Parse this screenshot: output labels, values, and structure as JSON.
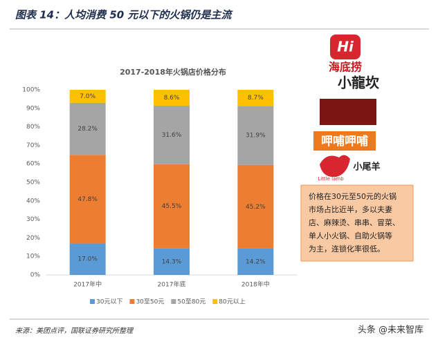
{
  "header": {
    "title": "图表 14：人均消费 50 元以下的火锅仍是主流"
  },
  "chart_data": {
    "type": "stacked_bar",
    "title": "2017-2018年火锅店价格分布",
    "categories": [
      "2017年中",
      "2017年底",
      "2018年中"
    ],
    "series": [
      {
        "name": "30元以下",
        "color": "#5b9bd5",
        "values": [
          17.0,
          14.3,
          14.2
        ],
        "value_labels": [
          "17.0%",
          "14.3%",
          "14.2%"
        ]
      },
      {
        "name": "30至50元",
        "color": "#ed7d31",
        "values": [
          47.8,
          45.5,
          45.2
        ],
        "value_labels": [
          "47.8%",
          "45.5%",
          "45.2%"
        ]
      },
      {
        "name": "50至80元",
        "color": "#a5a5a5",
        "values": [
          28.2,
          31.6,
          31.9
        ],
        "value_labels": [
          "28.2%",
          "31.6%",
          "31.9%"
        ]
      },
      {
        "name": "80元以上",
        "color": "#ffc000",
        "values": [
          7.0,
          8.6,
          8.7
        ],
        "value_labels": [
          "7.0%",
          "8.6%",
          "8.7%"
        ]
      }
    ],
    "ylim": [
      0,
      100
    ],
    "yticks": [
      {
        "value": 0,
        "label": "0%"
      },
      {
        "value": 10,
        "label": "10%"
      },
      {
        "value": 20,
        "label": "20%"
      },
      {
        "value": 30,
        "label": "30%"
      },
      {
        "value": 40,
        "label": "40%"
      },
      {
        "value": 50,
        "label": "50%"
      },
      {
        "value": 60,
        "label": "60%"
      },
      {
        "value": 70,
        "label": "70%"
      },
      {
        "value": 80,
        "label": "80%"
      },
      {
        "value": 90,
        "label": "90%"
      },
      {
        "value": 100,
        "label": "100%"
      }
    ],
    "legend": "bottom"
  },
  "logos": {
    "haidilao_mark": "Hi",
    "haidilao": "海底捞",
    "xiaolongkan": "小龍坎",
    "xiabuxiabu": "呷哺呷哺",
    "xiaoweiyang": "小尾羊",
    "xiaoweiyang_en": "Little lamb"
  },
  "annotation": {
    "lines": [
      "价格在30元至50元的火锅",
      "市场占比近半，多以夫妻",
      "店、麻辣烫、串串、冒菜、",
      "单人小火锅、自助火锅等",
      "为主，连锁化率很低。"
    ]
  },
  "source": "来源：美团点评，国联证券研究所整理",
  "watermark": "头条 @未来智库"
}
